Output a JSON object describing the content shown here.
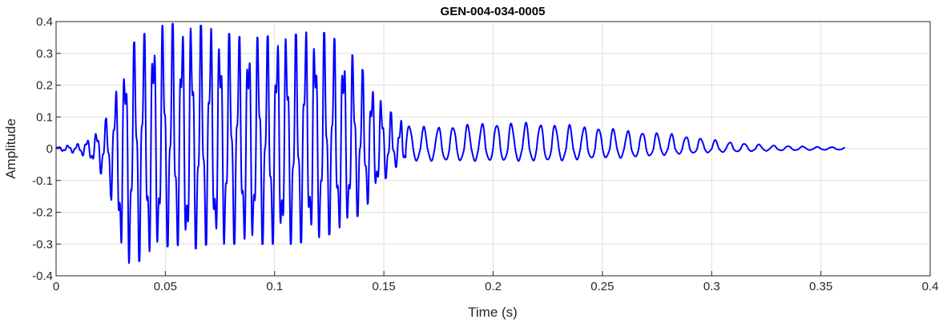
{
  "chart_data": {
    "type": "line",
    "title": "GEN-004-034-0005",
    "xlabel": "Time (s)",
    "ylabel": "Amplitude",
    "xlim": [
      0,
      0.4
    ],
    "ylim": [
      -0.4,
      0.4
    ],
    "xticks": [
      0,
      0.05,
      0.1,
      0.15,
      0.2,
      0.25,
      0.3,
      0.35,
      0.4
    ],
    "xtick_labels": [
      "0",
      "0.05",
      "0.1",
      "0.15",
      "0.2",
      "0.25",
      "0.3",
      "0.35",
      "0.4"
    ],
    "yticks": [
      -0.4,
      -0.3,
      -0.2,
      -0.1,
      0,
      0.1,
      0.2,
      0.3,
      0.4
    ],
    "ytick_labels": [
      "-0.4",
      "-0.3",
      "-0.2",
      "-0.1",
      "0",
      "0.1",
      "0.2",
      "0.3",
      "0.4"
    ],
    "grid": true,
    "line_color": "#0000ff",
    "series": [
      {
        "x": [
          0,
          0.005,
          0.01,
          0.015,
          0.02,
          0.025,
          0.03,
          0.035,
          0.04,
          0.045,
          0.05,
          0.055,
          0.06,
          0.065,
          0.07,
          0.075,
          0.08,
          0.085,
          0.09,
          0.095,
          0.1,
          0.105,
          0.11,
          0.115,
          0.12,
          0.125,
          0.13,
          0.135,
          0.14,
          0.145,
          0.15,
          0.155,
          0.16,
          0.17,
          0.18,
          0.19,
          0.2,
          0.21,
          0.22,
          0.23,
          0.24,
          0.25,
          0.26,
          0.27,
          0.28,
          0.29,
          0.3,
          0.31,
          0.32,
          0.33,
          0.34,
          0.35,
          0.361
        ],
        "y_upper": [
          0.005,
          0.01,
          0.015,
          0.03,
          0.06,
          0.12,
          0.24,
          0.33,
          0.36,
          0.38,
          0.39,
          0.395,
          0.395,
          0.39,
          0.38,
          0.37,
          0.36,
          0.35,
          0.35,
          0.35,
          0.36,
          0.36,
          0.36,
          0.37,
          0.37,
          0.36,
          0.33,
          0.3,
          0.25,
          0.2,
          0.14,
          0.1,
          0.08,
          0.07,
          0.075,
          0.08,
          0.085,
          0.085,
          0.085,
          0.08,
          0.075,
          0.07,
          0.06,
          0.055,
          0.05,
          0.04,
          0.03,
          0.02,
          0.015,
          0.01,
          0.008,
          0.006,
          0.005
        ],
        "y_lower": [
          -0.005,
          -0.01,
          -0.015,
          -0.03,
          -0.07,
          -0.15,
          -0.36,
          -0.36,
          -0.35,
          -0.33,
          -0.31,
          -0.3,
          -0.33,
          -0.31,
          -0.3,
          -0.3,
          -0.3,
          -0.3,
          -0.3,
          -0.3,
          -0.3,
          -0.3,
          -0.3,
          -0.29,
          -0.28,
          -0.27,
          -0.26,
          -0.23,
          -0.2,
          -0.15,
          -0.1,
          -0.06,
          -0.04,
          -0.04,
          -0.04,
          -0.04,
          -0.04,
          -0.04,
          -0.04,
          -0.04,
          -0.035,
          -0.03,
          -0.03,
          -0.025,
          -0.02,
          -0.015,
          -0.012,
          -0.01,
          -0.008,
          -0.006,
          -0.005,
          -0.004,
          -0.003
        ]
      }
    ]
  }
}
